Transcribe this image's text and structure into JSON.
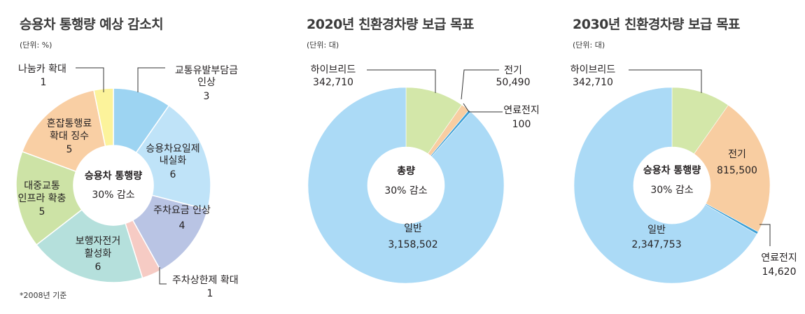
{
  "footnote": "*2008년 기준",
  "chart_data": [
    {
      "type": "pie",
      "title": "승용차 통행량 예상 감소치",
      "unit_label": "(단위: %)",
      "center_label": [
        "승용차 통행량",
        "30% 감소"
      ],
      "slices": [
        {
          "name": "교통유발부담금 인상",
          "label_lines": [
            "교통유발부담금",
            "인상"
          ],
          "value_text": "3",
          "value": 3,
          "color": "#9dd4f2"
        },
        {
          "name": "승용차요일제 내실화",
          "label_lines": [
            "승용차요일제",
            "내실화"
          ],
          "value_text": "6",
          "value": 6,
          "color": "#bfe3f8"
        },
        {
          "name": "주차요금 인상",
          "label_lines": [
            "주차요금 인상"
          ],
          "value_text": "4",
          "value": 4,
          "color": "#b9c4e4"
        },
        {
          "name": "주차상한제 확대",
          "label_lines": [
            "주차상한제 확대"
          ],
          "value_text": "1",
          "value": 1,
          "color": "#f6cbc4"
        },
        {
          "name": "보행자전거 활성화",
          "label_lines": [
            "보행자전거",
            "활성화"
          ],
          "value_text": "6",
          "value": 6,
          "color": "#b5e0dc"
        },
        {
          "name": "대중교통 인프라 확충",
          "label_lines": [
            "대중교통",
            "인프라 확충"
          ],
          "value_text": "5",
          "value": 5,
          "color": "#cde3a6"
        },
        {
          "name": "혼잡통행료 확대 징수",
          "label_lines": [
            "혼잡통행료",
            "확대 징수"
          ],
          "value_text": "5",
          "value": 5,
          "color": "#f9cfa4"
        },
        {
          "name": "나눔카 확대",
          "label_lines": [
            "나눔카 확대"
          ],
          "value_text": "1",
          "value": 1,
          "color": "#fcf39b"
        }
      ]
    },
    {
      "type": "pie",
      "title": "2020년 친환경차량 보급 목표",
      "unit_label": "(단위: 대)",
      "center_label": [
        "총량",
        "30% 감소"
      ],
      "slices": [
        {
          "name": "하이브리드",
          "label_lines": [
            "하이브리드"
          ],
          "value_text": "342,710",
          "value": 342710,
          "color": "#d3e7a9"
        },
        {
          "name": "전기",
          "label_lines": [
            "전기"
          ],
          "value_text": "50,490",
          "value": 50490,
          "color": "#f8cda1"
        },
        {
          "name": "연료전지",
          "label_lines": [
            "연료전지"
          ],
          "value_text": "100",
          "value": 100,
          "color": "#3a9fd6"
        },
        {
          "name": "일반",
          "label_lines": [
            "일반"
          ],
          "value_text": "3,158,502",
          "value": 3158502,
          "color": "#abdaf6"
        }
      ]
    },
    {
      "type": "pie",
      "title": "2030년 친환경차량 보급 목표",
      "unit_label": "(단위: 대)",
      "center_label": [
        "승용차 통행량",
        "30% 감소"
      ],
      "slices": [
        {
          "name": "하이브리드",
          "label_lines": [
            "하이브리드"
          ],
          "value_text": "342,710",
          "value": 342710,
          "color": "#d3e7a9"
        },
        {
          "name": "전기",
          "label_lines": [
            "전기"
          ],
          "value_text": "815,500",
          "value": 815500,
          "color": "#f8cda1"
        },
        {
          "name": "연료전지",
          "label_lines": [
            "연료전지"
          ],
          "value_text": "14,620",
          "value": 14620,
          "color": "#3a9fd6"
        },
        {
          "name": "일반",
          "label_lines": [
            "일반"
          ],
          "value_text": "2,347,753",
          "value": 2347753,
          "color": "#abdaf6"
        }
      ]
    }
  ]
}
